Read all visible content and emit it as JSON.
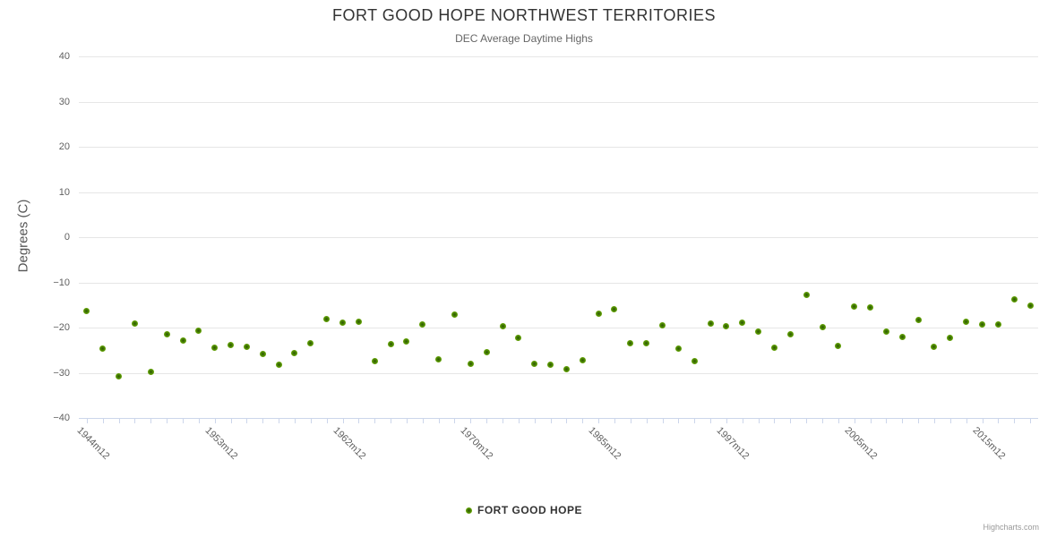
{
  "chart_data": {
    "type": "scatter",
    "title": "FORT GOOD HOPE NORTHWEST TERRITORIES",
    "subtitle": "DEC Average Daytime Highs",
    "ylabel": "Degrees (C)",
    "ylim": [
      -40,
      40
    ],
    "y_ticks": [
      40,
      30,
      20,
      10,
      0,
      -10,
      -20,
      -30,
      -40
    ],
    "grid": true,
    "legend_position": "bottom",
    "num_points": 60,
    "x_tick_labels": [
      {
        "index": 0,
        "label": "1944m12"
      },
      {
        "index": 8,
        "label": "1953m12"
      },
      {
        "index": 16,
        "label": "1962m12"
      },
      {
        "index": 24,
        "label": "1970m12"
      },
      {
        "index": 32,
        "label": "1985m12"
      },
      {
        "index": 40,
        "label": "1997m12"
      },
      {
        "index": 48,
        "label": "2005m12"
      },
      {
        "index": 56,
        "label": "2015m12"
      }
    ],
    "series": [
      {
        "name": "FORT GOOD HOPE",
        "color": "#76b30e",
        "marker_center_color": "#315d03",
        "values": [
          -16.4,
          -24.6,
          -30.7,
          -19.1,
          -29.9,
          -21.5,
          -22.9,
          -20.6,
          -24.4,
          -23.9,
          -24.2,
          -25.9,
          -28.2,
          -25.7,
          -23.4,
          -18.2,
          -18.9,
          -18.8,
          -27.5,
          -23.7,
          -23.1,
          -19.4,
          -27.0,
          -17.1,
          -28.1,
          -25.4,
          -19.8,
          -22.2,
          -28.0,
          -28.3,
          -29.3,
          -27.3,
          -16.9,
          -16.0,
          -23.5,
          -23.4,
          -19.5,
          -24.7,
          -27.5,
          -19.2,
          -19.8,
          -18.9,
          -20.9,
          -24.4,
          -21.4,
          -12.8,
          -19.9,
          -24.0,
          -15.4,
          -15.6,
          -20.9,
          -22.0,
          -18.4,
          -24.2,
          -22.2,
          -18.8,
          -19.4,
          -19.4,
          -13.8,
          -15.2
        ]
      }
    ]
  },
  "colors": {
    "grid": "#e6e6e6",
    "axis": "#ccd6eb",
    "title_text": "#333333",
    "subtitle_text": "#666666",
    "tick_text": "#606060"
  },
  "credits": {
    "label": "Highcharts.com"
  }
}
